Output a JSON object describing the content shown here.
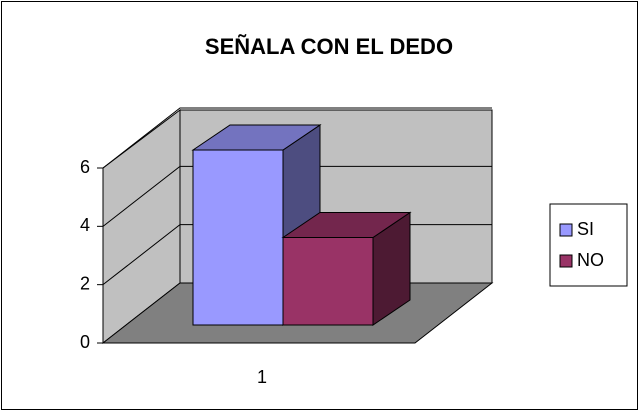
{
  "chart_data": {
    "type": "bar3d",
    "title": "SEÑALA CON EL DEDO",
    "categories": [
      "1"
    ],
    "series": [
      {
        "name": "SI",
        "color": "#9999ff",
        "values": [
          6
        ]
      },
      {
        "name": "NO",
        "color": "#993366",
        "values": [
          3
        ]
      }
    ],
    "ylim": [
      0,
      6
    ],
    "yticks": [
      0,
      2,
      4,
      6
    ],
    "grid": true,
    "legend": "right"
  }
}
